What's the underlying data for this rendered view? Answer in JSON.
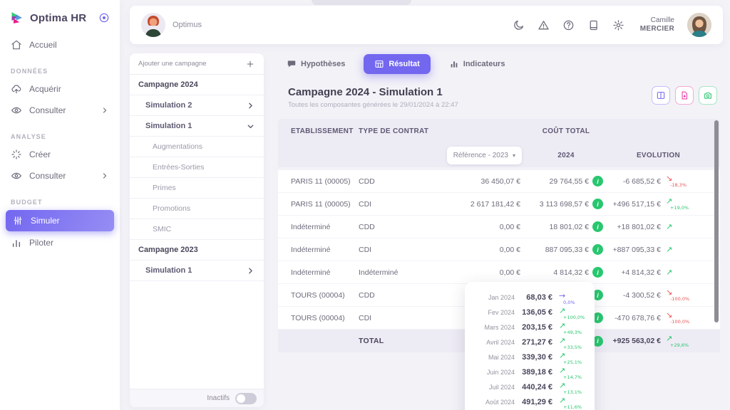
{
  "brand": {
    "name": "Optima HR"
  },
  "colors": {
    "accent": "#7367f0",
    "green": "#28c76f",
    "red": "#ea5455",
    "pink": "#e83ea8"
  },
  "sidebar": {
    "nav": [
      {
        "type": "item",
        "label": "Accueil",
        "icon": "home"
      },
      {
        "type": "section",
        "label": "DONNÉES"
      },
      {
        "type": "item",
        "label": "Acquérir",
        "icon": "upload-cloud"
      },
      {
        "type": "item",
        "label": "Consulter",
        "icon": "eye",
        "chevron": "right"
      },
      {
        "type": "section",
        "label": "ANALYSE"
      },
      {
        "type": "item",
        "label": "Créer",
        "icon": "sparkle"
      },
      {
        "type": "item",
        "label": "Consulter",
        "icon": "eye",
        "chevron": "right"
      },
      {
        "type": "section",
        "label": "BUDGET"
      },
      {
        "type": "item",
        "label": "Simuler",
        "icon": "sliders",
        "active": true
      },
      {
        "type": "item",
        "label": "Piloter",
        "icon": "bar-chart"
      }
    ]
  },
  "topbar": {
    "workspace_name": "Optimus",
    "icons": [
      "moon",
      "alert-triangle",
      "help-circle",
      "book",
      "gear"
    ],
    "user_first": "Camille",
    "user_last": "MERCIER"
  },
  "panel": {
    "add_label": "Ajouter une campagne",
    "tree": [
      {
        "type": "campaign",
        "label": "Campagne 2024"
      },
      {
        "type": "simulation",
        "label": "Simulation 2",
        "chevron": "right"
      },
      {
        "type": "simulation",
        "label": "Simulation 1",
        "chevron": "down"
      },
      {
        "type": "component",
        "label": "Augmentations"
      },
      {
        "type": "component",
        "label": "Entrées-Sorties"
      },
      {
        "type": "component",
        "label": "Primes"
      },
      {
        "type": "component",
        "label": "Promotions"
      },
      {
        "type": "component",
        "label": "SMIC"
      },
      {
        "type": "campaign",
        "label": "Campagne 2023"
      },
      {
        "type": "simulation",
        "label": "Simulation 1",
        "chevron": "right"
      }
    ],
    "inactifs_label": "Inactifs",
    "inactifs_on": false
  },
  "main": {
    "tabs": [
      {
        "label": "Hypothèses",
        "icon": "speech",
        "active": false
      },
      {
        "label": "Résultat",
        "icon": "table",
        "active": true
      },
      {
        "label": "Indicateurs",
        "icon": "bars",
        "active": false
      }
    ],
    "title": "Campagne 2024 - Simulation 1",
    "subtitle": "Toutes les composantes générées le 29/01/2024 à 22:47",
    "export_buttons": [
      {
        "icon": "table-columns",
        "color": "#7367f0",
        "border": "#c4befb"
      },
      {
        "icon": "file-export",
        "color": "#e83ea8",
        "border": "#f5aad6"
      },
      {
        "icon": "camera",
        "color": "#28c76f",
        "border": "#a5e6c5"
      }
    ],
    "table": {
      "headers": {
        "etablissement": "ETABLISSEMENT",
        "type_contrat": "TYPE DE CONTRAT",
        "cout_total": "COÛT TOTAL",
        "reference": "Référence - 2023",
        "year": "2024",
        "evolution": "EVOLUTION"
      },
      "rows": [
        {
          "etablissement": "PARIS 11 (00005)",
          "contrat": "CDD",
          "reference": "36 450,07 €",
          "cout_2024": "29 764,55 €",
          "evolution": "-6 685,52 €",
          "trend": "down",
          "pct": "-18,3%"
        },
        {
          "etablissement": "PARIS 11 (00005)",
          "contrat": "CDI",
          "reference": "2 617 181,42 €",
          "cout_2024": "3 113 698,57 €",
          "evolution": "+496 517,15 €",
          "trend": "up",
          "pct": "+19,0%"
        },
        {
          "etablissement": "Indéterminé",
          "contrat": "CDD",
          "reference": "0,00 €",
          "cout_2024": "18 801,02 €",
          "evolution": "+18 801,02 €",
          "trend": "up",
          "pct": ""
        },
        {
          "etablissement": "Indéterminé",
          "contrat": "CDI",
          "reference": "0,00 €",
          "cout_2024": "887 095,33 €",
          "evolution": "+887 095,33 €",
          "trend": "up",
          "pct": ""
        },
        {
          "etablissement": "Indéterminé",
          "contrat": "Indéterminé",
          "reference": "0,00 €",
          "cout_2024": "4 814,32 €",
          "evolution": "+4 814,32 €",
          "trend": "up",
          "pct": ""
        },
        {
          "etablissement": "TOURS (00004)",
          "contrat": "CDD",
          "reference": "",
          "cout_2024": "",
          "evolution": "-4 300,52 €",
          "trend": "down",
          "pct": "-100,0%"
        },
        {
          "etablissement": "TOURS (00004)",
          "contrat": "CDI",
          "reference": "",
          "cout_2024": "",
          "evolution": "-470 678,76 €",
          "trend": "down",
          "pct": "-100,0%"
        }
      ],
      "total_row": {
        "label": "TOTAL",
        "evolution": "+925 563,02 €",
        "trend": "up",
        "pct": "+29,6%"
      }
    }
  },
  "popup": {
    "rows": [
      {
        "month": "Jan 2024",
        "value": "68,03 €",
        "trend": "flat",
        "pct": "0,0%"
      },
      {
        "month": "Fev 2024",
        "value": "136,05 €",
        "trend": "up",
        "pct": "+100,0%"
      },
      {
        "month": "Mars 2024",
        "value": "203,15 €",
        "trend": "up",
        "pct": "+49,3%"
      },
      {
        "month": "Avril 2024",
        "value": "271,27 €",
        "trend": "up",
        "pct": "+33,5%"
      },
      {
        "month": "Mai 2024",
        "value": "339,30 €",
        "trend": "up",
        "pct": "+25,1%"
      },
      {
        "month": "Juin 2024",
        "value": "389,18 €",
        "trend": "up",
        "pct": "+14,7%"
      },
      {
        "month": "Juil 2024",
        "value": "440,24 €",
        "trend": "up",
        "pct": "+13,1%"
      },
      {
        "month": "Août 2024",
        "value": "491,29 €",
        "trend": "up",
        "pct": "+11,6%"
      }
    ]
  }
}
